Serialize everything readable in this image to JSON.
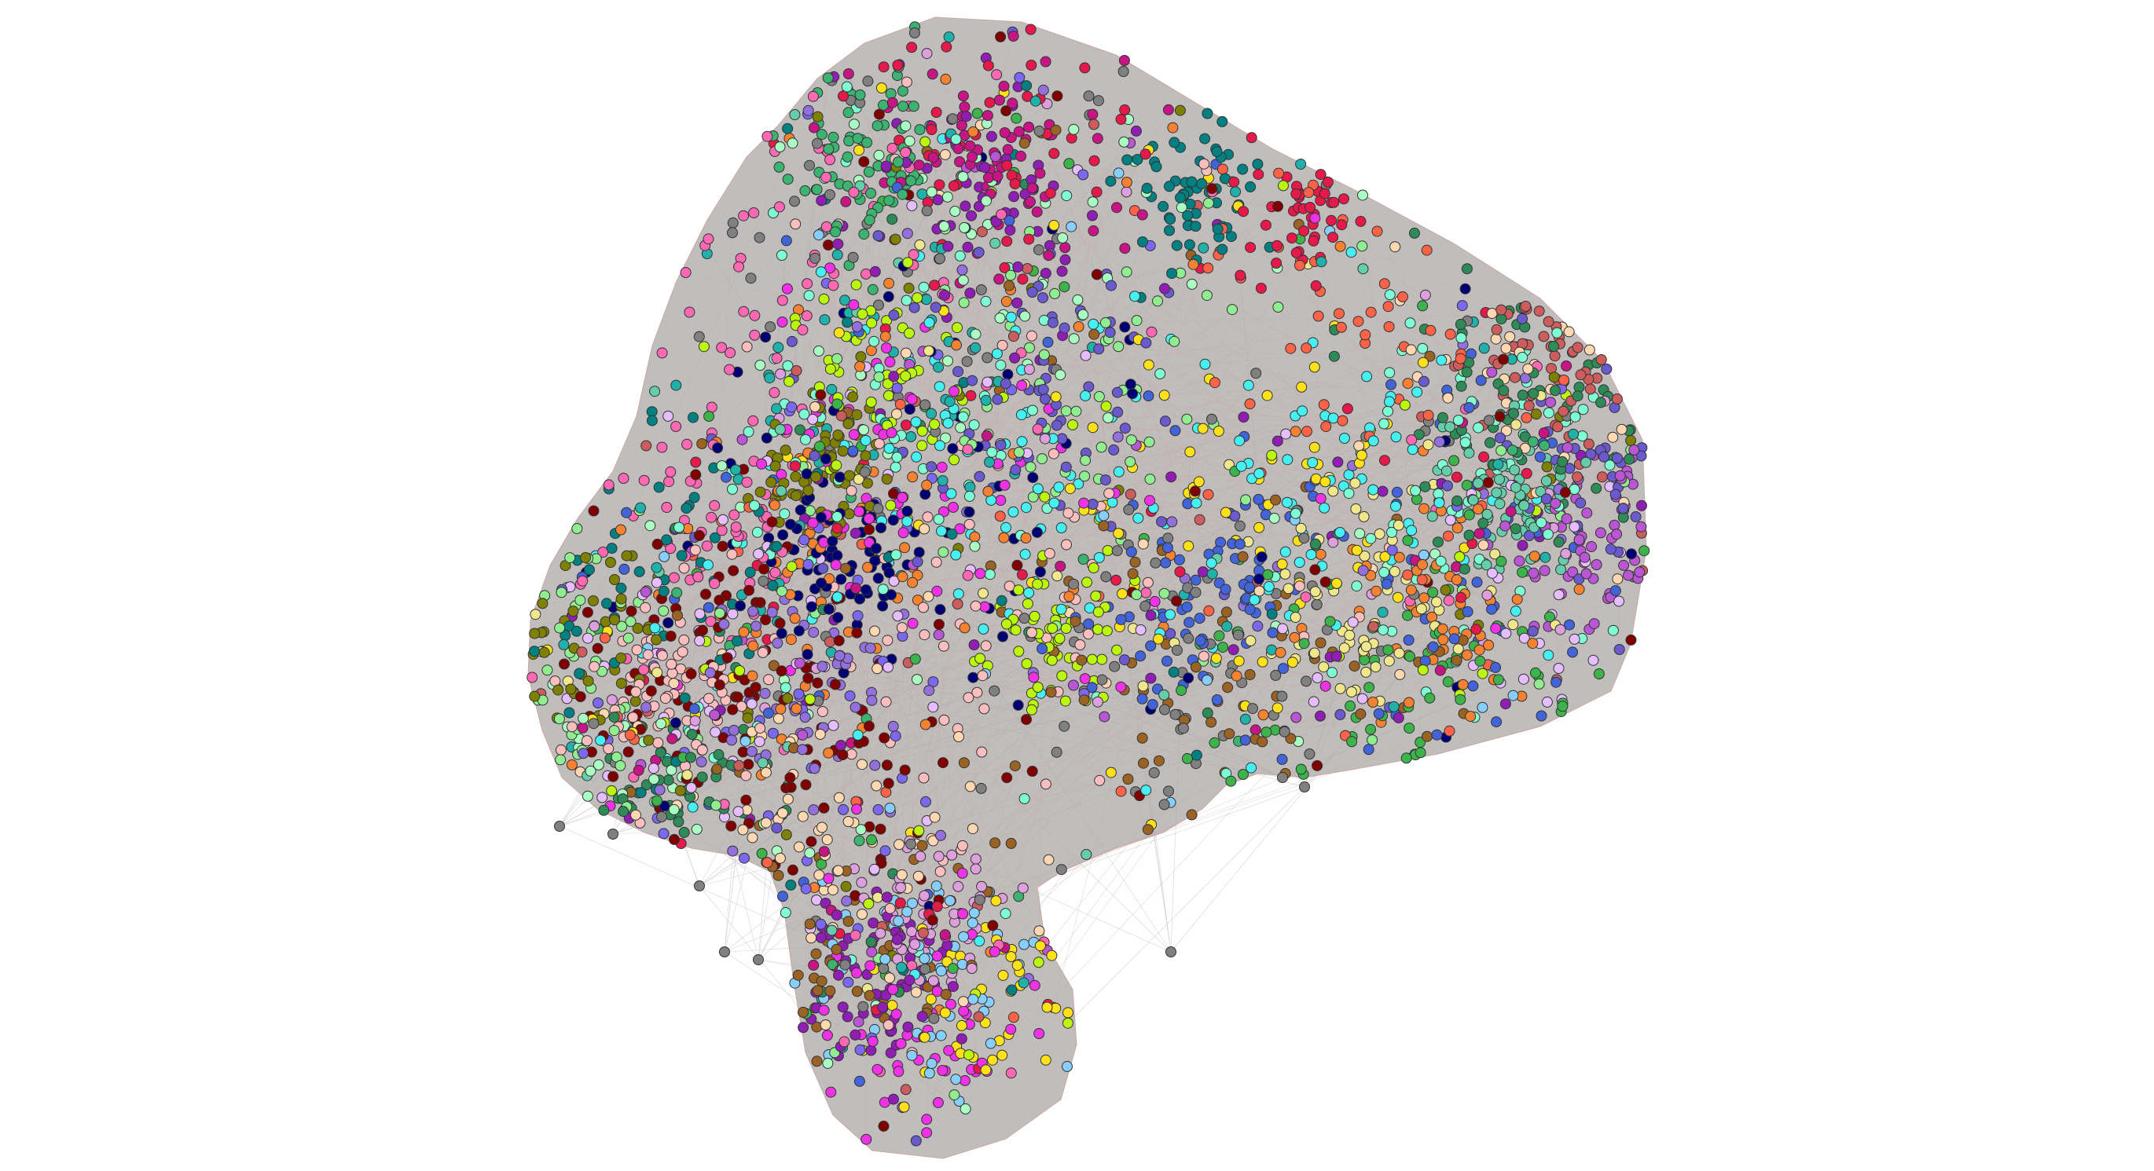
{
  "graph": {
    "type": "network",
    "layout": "force-directed",
    "node_count_estimate": 6000,
    "background_color": "#ffffff",
    "node_outline_color": "#333333",
    "edge_colors": [
      "#b0aaaa",
      "#c9a3a3",
      "#a9a9a9"
    ],
    "hull_fill_color": "#bdbaba",
    "community_palette": [
      "#e6194b",
      "#3cb44b",
      "#ffe119",
      "#4363d8",
      "#f58231",
      "#911eb4",
      "#46f0f0",
      "#f032e6",
      "#bcf60c",
      "#fabebe",
      "#008080",
      "#e6beff",
      "#9a6324",
      "#800000",
      "#aaffc3",
      "#808000",
      "#ffd8b1",
      "#000075",
      "#808080",
      "#2e8b57",
      "#7fffd4",
      "#ff69b4",
      "#6a5acd",
      "#90ee90",
      "#dda0dd",
      "#20b2aa",
      "#ff6347",
      "#9370db",
      "#3cb371",
      "#ba55d3",
      "#87cefa",
      "#f0e68c",
      "#cd5c5c",
      "#66cdaa",
      "#c71585",
      "#7b68ee"
    ],
    "shape": "mushroom"
  }
}
